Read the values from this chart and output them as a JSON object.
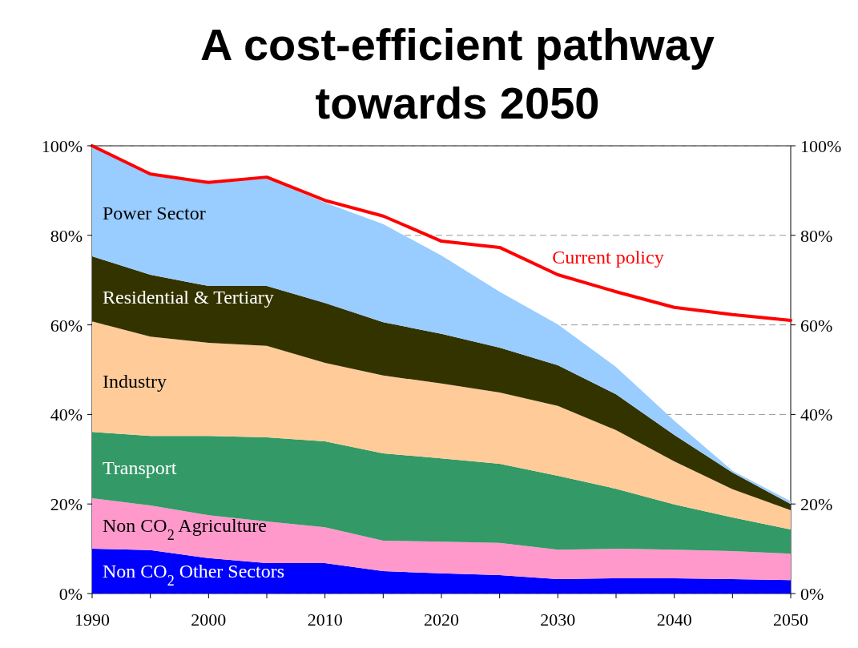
{
  "chart_data": {
    "type": "area",
    "stacked": true,
    "title": "A cost-efficient pathway towards 2050",
    "x": [
      1990,
      1995,
      2000,
      2005,
      2010,
      2015,
      2020,
      2025,
      2030,
      2035,
      2040,
      2045,
      2050
    ],
    "xlim": [
      1990,
      2050
    ],
    "xticks": [
      1990,
      2000,
      2010,
      2020,
      2030,
      2040,
      2050
    ],
    "ylim": [
      0,
      100
    ],
    "yticks": [
      {
        "value": 0,
        "label": "0%"
      },
      {
        "value": 20,
        "label": "20%"
      },
      {
        "value": 40,
        "label": "40%"
      },
      {
        "value": 60,
        "label": "60%"
      },
      {
        "value": 80,
        "label": "80%"
      },
      {
        "value": 100,
        "label": "100%"
      }
    ],
    "y2lim": [
      0,
      100
    ],
    "y2ticks": [
      {
        "value": 0,
        "label": "0%"
      },
      {
        "value": 20,
        "label": "20%"
      },
      {
        "value": 40,
        "label": "40%"
      },
      {
        "value": 60,
        "label": "60%"
      },
      {
        "value": 80,
        "label": "80%"
      },
      {
        "value": 100,
        "label": "100%"
      }
    ],
    "grid": "y",
    "series": [
      {
        "name": "Non CO$_{2}$ Other Sectors",
        "color": "#0000ff",
        "values": [
          10.0,
          9.7,
          7.9,
          6.8,
          6.8,
          5.0,
          4.5,
          4.1,
          3.2,
          3.4,
          3.4,
          3.2,
          3.0
        ]
      },
      {
        "name": "Non CO$_{2}$ Agriculture",
        "color": "#ff99cc",
        "values": [
          11.3,
          10.0,
          9.6,
          9.3,
          8.0,
          6.8,
          7.1,
          7.2,
          6.6,
          6.6,
          6.4,
          6.3,
          5.9
        ]
      },
      {
        "name": "Transport",
        "color": "#339966",
        "values": [
          14.8,
          15.5,
          17.7,
          18.8,
          19.2,
          19.5,
          18.6,
          17.7,
          16.5,
          13.4,
          10.1,
          7.5,
          5.4
        ]
      },
      {
        "name": "Industry",
        "color": "#ffcc99",
        "values": [
          24.7,
          22.2,
          20.8,
          20.4,
          17.5,
          17.4,
          16.7,
          15.9,
          15.6,
          13.1,
          9.6,
          6.3,
          4.3
        ]
      },
      {
        "name": "Residential & Tertiary",
        "color": "#333300",
        "values": [
          14.5,
          13.8,
          12.7,
          13.4,
          13.4,
          11.9,
          11.1,
          10.0,
          9.1,
          8.0,
          5.9,
          3.7,
          1.4
        ]
      },
      {
        "name": "Power Sector",
        "color": "#99ccff",
        "values": [
          24.7,
          22.2,
          22.8,
          24.0,
          22.4,
          21.9,
          17.5,
          12.5,
          9.1,
          6.1,
          3.2,
          0.4,
          0.6
        ]
      },
      {
        "name": "Current policy",
        "type": "line",
        "color": "#ff0000",
        "values": [
          100,
          93.7,
          91.8,
          93.0,
          87.8,
          84.3,
          78.7,
          77.3,
          71.2,
          67.4,
          63.9,
          62.3,
          61.0
        ]
      }
    ]
  }
}
